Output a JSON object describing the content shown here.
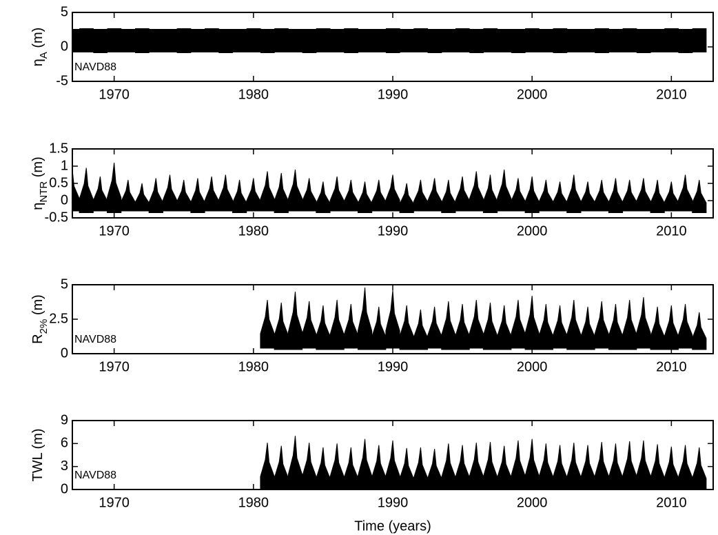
{
  "chart_data": [
    {
      "type": "band",
      "ylabel": [
        "η",
        "A",
        " (m)"
      ],
      "annotation": "NAVD88",
      "x": [
        1967,
        1968,
        1969,
        1970,
        1971,
        1972,
        1973,
        1974,
        1975,
        1976,
        1977,
        1978,
        1979,
        1980,
        1981,
        1982,
        1983,
        1984,
        1985,
        1986,
        1987,
        1988,
        1989,
        1990,
        1991,
        1992,
        1993,
        1994,
        1995,
        1996,
        1997,
        1998,
        1999,
        2000,
        2001,
        2002,
        2003,
        2004,
        2005,
        2006,
        2007,
        2008,
        2009,
        2010,
        2011,
        2012
      ],
      "values_max": [
        2.6,
        2.7,
        2.6,
        2.7,
        2.6,
        2.7,
        2.6,
        2.6,
        2.7,
        2.6,
        2.7,
        2.6,
        2.6,
        2.7,
        2.6,
        2.7,
        2.6,
        2.6,
        2.7,
        2.6,
        2.7,
        2.6,
        2.6,
        2.7,
        2.6,
        2.7,
        2.6,
        2.6,
        2.7,
        2.6,
        2.7,
        2.6,
        2.6,
        2.7,
        2.6,
        2.7,
        2.6,
        2.6,
        2.7,
        2.6,
        2.7,
        2.6,
        2.6,
        2.7,
        2.6,
        2.7
      ],
      "values_min": [
        -0.8,
        -0.8,
        -0.9,
        -0.8,
        -0.8,
        -0.9,
        -0.8,
        -0.8,
        -0.9,
        -0.8,
        -0.8,
        -0.9,
        -0.8,
        -0.8,
        -0.9,
        -0.8,
        -0.8,
        -0.9,
        -0.8,
        -0.8,
        -0.9,
        -0.8,
        -0.8,
        -0.9,
        -0.8,
        -0.8,
        -0.9,
        -0.8,
        -0.8,
        -0.9,
        -0.8,
        -0.8,
        -0.9,
        -0.8,
        -0.8,
        -0.9,
        -0.8,
        -0.8,
        -0.9,
        -0.8,
        -0.8,
        -0.9,
        -0.8,
        -0.8,
        -0.9,
        -0.8
      ],
      "xlim": [
        1967,
        2013
      ],
      "xticks": [
        1970,
        1980,
        1990,
        2000,
        2010
      ],
      "ylim": [
        -5,
        5
      ],
      "yticks": [
        -5,
        0,
        5
      ]
    },
    {
      "type": "area",
      "ylabel": [
        "η",
        "NTR",
        " (m)"
      ],
      "x": [
        1967,
        1968,
        1969,
        1970,
        1971,
        1972,
        1973,
        1974,
        1975,
        1976,
        1977,
        1978,
        1979,
        1980,
        1981,
        1982,
        1983,
        1984,
        1985,
        1986,
        1987,
        1988,
        1989,
        1990,
        1991,
        1992,
        1993,
        1994,
        1995,
        1996,
        1997,
        1998,
        1999,
        2000,
        2001,
        2002,
        2003,
        2004,
        2005,
        2006,
        2007,
        2008,
        2009,
        2010,
        2011,
        2012
      ],
      "values_max": [
        0.9,
        0.95,
        0.7,
        1.1,
        0.6,
        0.5,
        0.65,
        0.75,
        0.6,
        0.65,
        0.7,
        0.75,
        0.6,
        0.65,
        0.85,
        0.8,
        0.9,
        0.65,
        0.55,
        0.7,
        0.6,
        0.55,
        0.6,
        0.75,
        0.5,
        0.6,
        0.65,
        0.6,
        0.7,
        0.85,
        0.75,
        0.9,
        0.65,
        0.7,
        0.6,
        0.55,
        0.75,
        0.55,
        0.6,
        0.65,
        0.6,
        0.65,
        0.6,
        0.55,
        0.75,
        0.6
      ],
      "values_min": [
        -0.3,
        -0.35,
        -0.3,
        -0.35,
        -0.3,
        -0.3,
        -0.35,
        -0.3,
        -0.3,
        -0.35,
        -0.3,
        -0.3,
        -0.35,
        -0.3,
        -0.3,
        -0.35,
        -0.3,
        -0.3,
        -0.35,
        -0.3,
        -0.3,
        -0.35,
        -0.3,
        -0.3,
        -0.35,
        -0.3,
        -0.3,
        -0.35,
        -0.3,
        -0.3,
        -0.35,
        -0.3,
        -0.3,
        -0.35,
        -0.3,
        -0.3,
        -0.35,
        -0.3,
        -0.3,
        -0.35,
        -0.3,
        -0.3,
        -0.35,
        -0.3,
        -0.3,
        -0.35
      ],
      "xlim": [
        1967,
        2013
      ],
      "xticks": [
        1970,
        1980,
        1990,
        2000,
        2010
      ],
      "ylim": [
        -0.5,
        1.5
      ],
      "yticks": [
        -0.5,
        0,
        0.5,
        1,
        1.5
      ]
    },
    {
      "type": "area",
      "ylabel": [
        "R",
        "2%",
        " (m)"
      ],
      "annotation": "NAVD88",
      "x": [
        1981,
        1982,
        1983,
        1984,
        1985,
        1986,
        1987,
        1988,
        1989,
        1990,
        1991,
        1992,
        1993,
        1994,
        1995,
        1996,
        1997,
        1998,
        1999,
        2000,
        2001,
        2002,
        2003,
        2004,
        2005,
        2006,
        2007,
        2008,
        2009,
        2010,
        2011,
        2012
      ],
      "values_max": [
        3.9,
        3.7,
        4.5,
        3.8,
        3.5,
        3.9,
        3.6,
        4.8,
        3.4,
        4.6,
        3.5,
        3.2,
        3.4,
        3.8,
        3.6,
        3.9,
        3.7,
        3.5,
        3.9,
        4.2,
        3.6,
        3.5,
        3.9,
        3.4,
        3.8,
        3.6,
        3.9,
        4.1,
        3.4,
        3.5,
        3.6,
        3.0
      ],
      "values_min": [
        0.4,
        0.3,
        0.3,
        0.4,
        0.3,
        0.3,
        0.4,
        0.3,
        0.3,
        0.4,
        0.3,
        0.3,
        0.4,
        0.3,
        0.3,
        0.4,
        0.3,
        0.3,
        0.4,
        0.3,
        0.3,
        0.4,
        0.3,
        0.3,
        0.4,
        0.3,
        0.3,
        0.4,
        0.3,
        0.3,
        0.4,
        0.3
      ],
      "xlim": [
        1967,
        2013
      ],
      "xticks": [
        1970,
        1980,
        1990,
        2000,
        2010
      ],
      "ylim": [
        0,
        5
      ],
      "yticks": [
        0,
        2.5,
        5
      ]
    },
    {
      "type": "area",
      "ylabel": [
        "TWL (m)"
      ],
      "annotation": "NAVD88",
      "xlabel": "Time (years)",
      "x": [
        1981,
        1982,
        1983,
        1984,
        1985,
        1986,
        1987,
        1988,
        1989,
        1990,
        1991,
        1992,
        1993,
        1994,
        1995,
        1996,
        1997,
        1998,
        1999,
        2000,
        2001,
        2002,
        2003,
        2004,
        2005,
        2006,
        2007,
        2008,
        2009,
        2010,
        2011,
        2012
      ],
      "values_max": [
        6.1,
        5.7,
        7.0,
        6.1,
        5.5,
        6.0,
        5.5,
        6.6,
        5.8,
        6.4,
        5.4,
        5.5,
        5.3,
        6.0,
        5.8,
        6.1,
        6.2,
        5.7,
        6.4,
        6.6,
        6.0,
        5.8,
        6.1,
        5.8,
        6.2,
        6.0,
        6.3,
        6.4,
        5.9,
        5.6,
        5.8,
        5.5
      ],
      "values_min": [
        -0.2,
        -0.3,
        -0.2,
        -0.2,
        -0.3,
        -0.2,
        -0.2,
        -0.3,
        -0.2,
        -0.2,
        -0.3,
        -0.2,
        -0.2,
        -0.3,
        -0.2,
        -0.2,
        -0.3,
        -0.2,
        -0.2,
        -0.3,
        -0.2,
        -0.2,
        -0.3,
        -0.2,
        -0.2,
        -0.3,
        -0.2,
        -0.2,
        -0.3,
        -0.2,
        -0.2,
        -0.3
      ],
      "xlim": [
        1967,
        2013
      ],
      "xticks": [
        1970,
        1980,
        1990,
        2000,
        2010
      ],
      "ylim": [
        0,
        9
      ],
      "yticks": [
        0,
        3,
        6,
        9
      ]
    }
  ]
}
